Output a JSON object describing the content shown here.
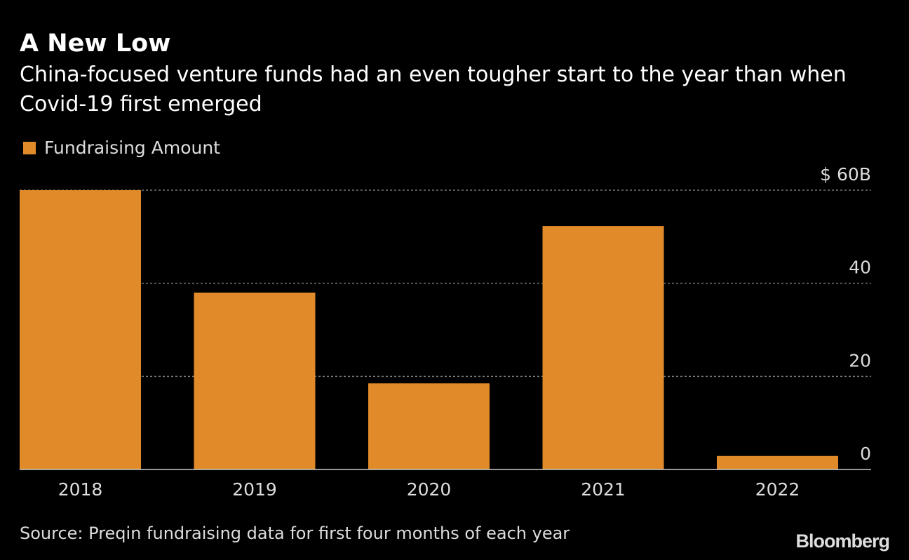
{
  "chart_data": {
    "type": "bar",
    "title": "A New Low",
    "subtitle": "China-focused venture funds had an even tougher start to the year than when Covid-19 first emerged",
    "categories": [
      "2018",
      "2019",
      "2020",
      "2021",
      "2022"
    ],
    "series": [
      {
        "name": "Fundraising Amount",
        "values": [
          60,
          38,
          18.5,
          52.3,
          2.9
        ]
      }
    ],
    "ylim": [
      0,
      60
    ],
    "yticks": [
      0,
      20,
      40,
      60
    ],
    "ytick_labels": [
      "0",
      "20",
      "40",
      "$ 60B"
    ],
    "grid": true,
    "gridline_style": "dotted",
    "yaxis_side": "right",
    "legend_placement": "top-left",
    "bar_color": "#E08A2A",
    "background": "#000000"
  },
  "source": "Source: Preqin fundraising data for first four months of each year",
  "logo": "Bloomberg"
}
